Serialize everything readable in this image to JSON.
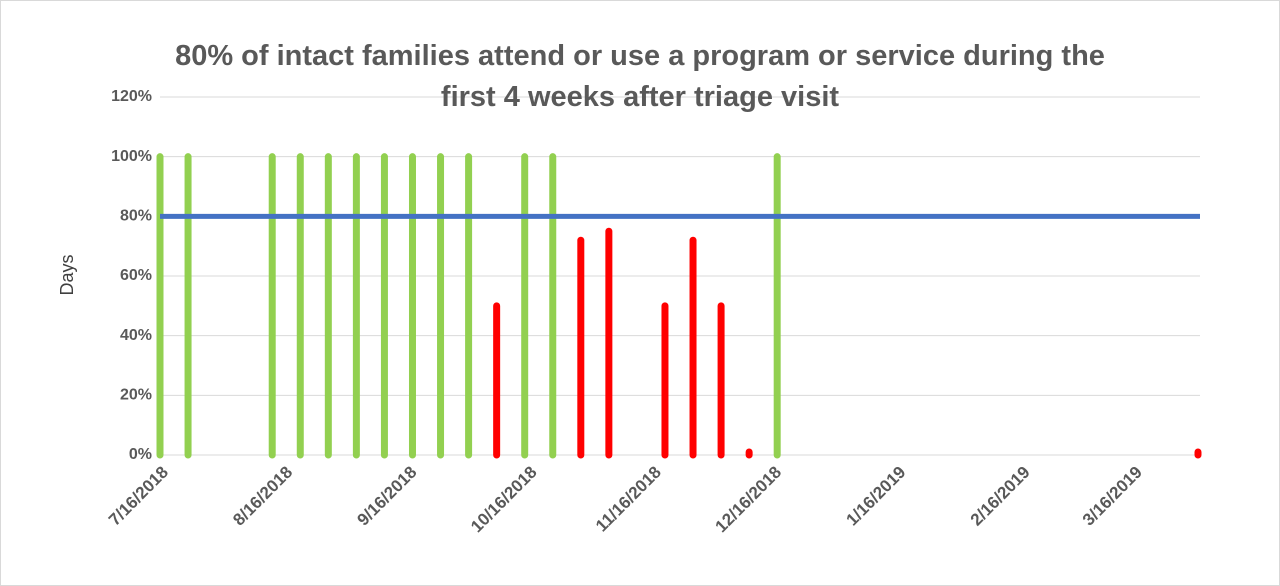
{
  "chart_data": {
    "type": "bar",
    "title": "80% of intact families attend or use a program or service during the first 4 weeks after triage visit",
    "ylabel": "Days",
    "xlim": [
      "7/16/2018",
      "4/1/2019"
    ],
    "xticks": [
      "7/16/2018",
      "8/16/2018",
      "9/16/2018",
      "10/16/2018",
      "11/16/2018",
      "12/16/2018",
      "1/16/2019",
      "2/16/2019",
      "3/16/2019"
    ],
    "ylim": [
      0,
      120
    ],
    "yticks": [
      {
        "value": 0,
        "label": "0%"
      },
      {
        "value": 20,
        "label": "20%"
      },
      {
        "value": 40,
        "label": "40%"
      },
      {
        "value": 60,
        "label": "60%"
      },
      {
        "value": 80,
        "label": "80%"
      },
      {
        "value": 100,
        "label": "100%"
      },
      {
        "value": 120,
        "label": "120%"
      }
    ],
    "grid": true,
    "target": {
      "value": 80,
      "color": "#4472c4"
    },
    "series": [
      {
        "color": "#92d050",
        "x": [
          "7/16/2018",
          "7/23/2018",
          "8/13/2018",
          "8/20/2018",
          "8/27/2018",
          "9/3/2018",
          "9/10/2018",
          "9/17/2018",
          "9/24/2018",
          "10/1/2018",
          "10/15/2018",
          "10/22/2018",
          "12/17/2018"
        ],
        "values": [
          100,
          100,
          100,
          100,
          100,
          100,
          100,
          100,
          100,
          100,
          100,
          100,
          100
        ]
      },
      {
        "color": "#ff0000",
        "x": [
          "10/8/2018",
          "10/29/2018",
          "11/5/2018",
          "11/19/2018",
          "11/26/2018",
          "12/3/2018",
          "12/10/2018",
          "4/1/2019"
        ],
        "values": [
          50,
          72,
          75,
          50,
          72,
          50,
          1,
          1
        ]
      }
    ]
  }
}
